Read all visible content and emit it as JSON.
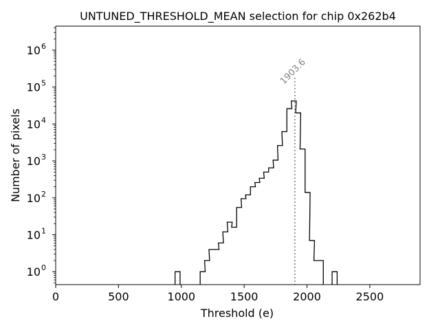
{
  "chart_data": {
    "type": "histogram",
    "title": "UNTUNED_THRESHOLD_MEAN selection for chip 0x262b4",
    "xlabel": "Threshold (e)",
    "ylabel": "Number of pixels",
    "xlim": [
      0,
      2900
    ],
    "ylim_log10": [
      -0.35,
      6.65
    ],
    "yscale": "log",
    "grid": false,
    "x_ticks": [
      0,
      500,
      1000,
      1500,
      2000,
      2500
    ],
    "x_tick_labels": [
      "0",
      "500",
      "1000",
      "1500",
      "2000",
      "2500"
    ],
    "y_ticks_exponent": [
      0,
      1,
      2,
      3,
      4,
      5,
      6
    ],
    "y_tick_base": "10",
    "bin_width": 40,
    "bins": [
      {
        "x0": 950,
        "count": 1
      },
      {
        "x0": 1150,
        "count": 1
      },
      {
        "x0": 1185,
        "count": 2
      },
      {
        "x0": 1220,
        "count": 4
      },
      {
        "x0": 1260,
        "count": 4
      },
      {
        "x0": 1295,
        "count": 6
      },
      {
        "x0": 1330,
        "count": 12
      },
      {
        "x0": 1365,
        "count": 22
      },
      {
        "x0": 1400,
        "count": 16
      },
      {
        "x0": 1440,
        "count": 55
      },
      {
        "x0": 1475,
        "count": 95
      },
      {
        "x0": 1510,
        "count": 120
      },
      {
        "x0": 1550,
        "count": 200
      },
      {
        "x0": 1585,
        "count": 260
      },
      {
        "x0": 1620,
        "count": 340
      },
      {
        "x0": 1655,
        "count": 500
      },
      {
        "x0": 1695,
        "count": 650
      },
      {
        "x0": 1730,
        "count": 1050
      },
      {
        "x0": 1765,
        "count": 2600
      },
      {
        "x0": 1800,
        "count": 6200
      },
      {
        "x0": 1840,
        "count": 26000
      },
      {
        "x0": 1875,
        "count": 42000
      },
      {
        "x0": 1910,
        "count": 20000
      },
      {
        "x0": 1945,
        "count": 2100
      },
      {
        "x0": 1985,
        "count": 140
      },
      {
        "x0": 2020,
        "count": 7
      },
      {
        "x0": 2055,
        "count": 2
      },
      {
        "x0": 2090,
        "count": 2
      },
      {
        "x0": 2200,
        "count": 1
      }
    ],
    "annotation": {
      "x": 1903.6,
      "label": "1903.6",
      "color": "#808080",
      "style": "dotted"
    },
    "colors": {
      "histogram": "#000000",
      "marker_line": "#808080"
    }
  }
}
